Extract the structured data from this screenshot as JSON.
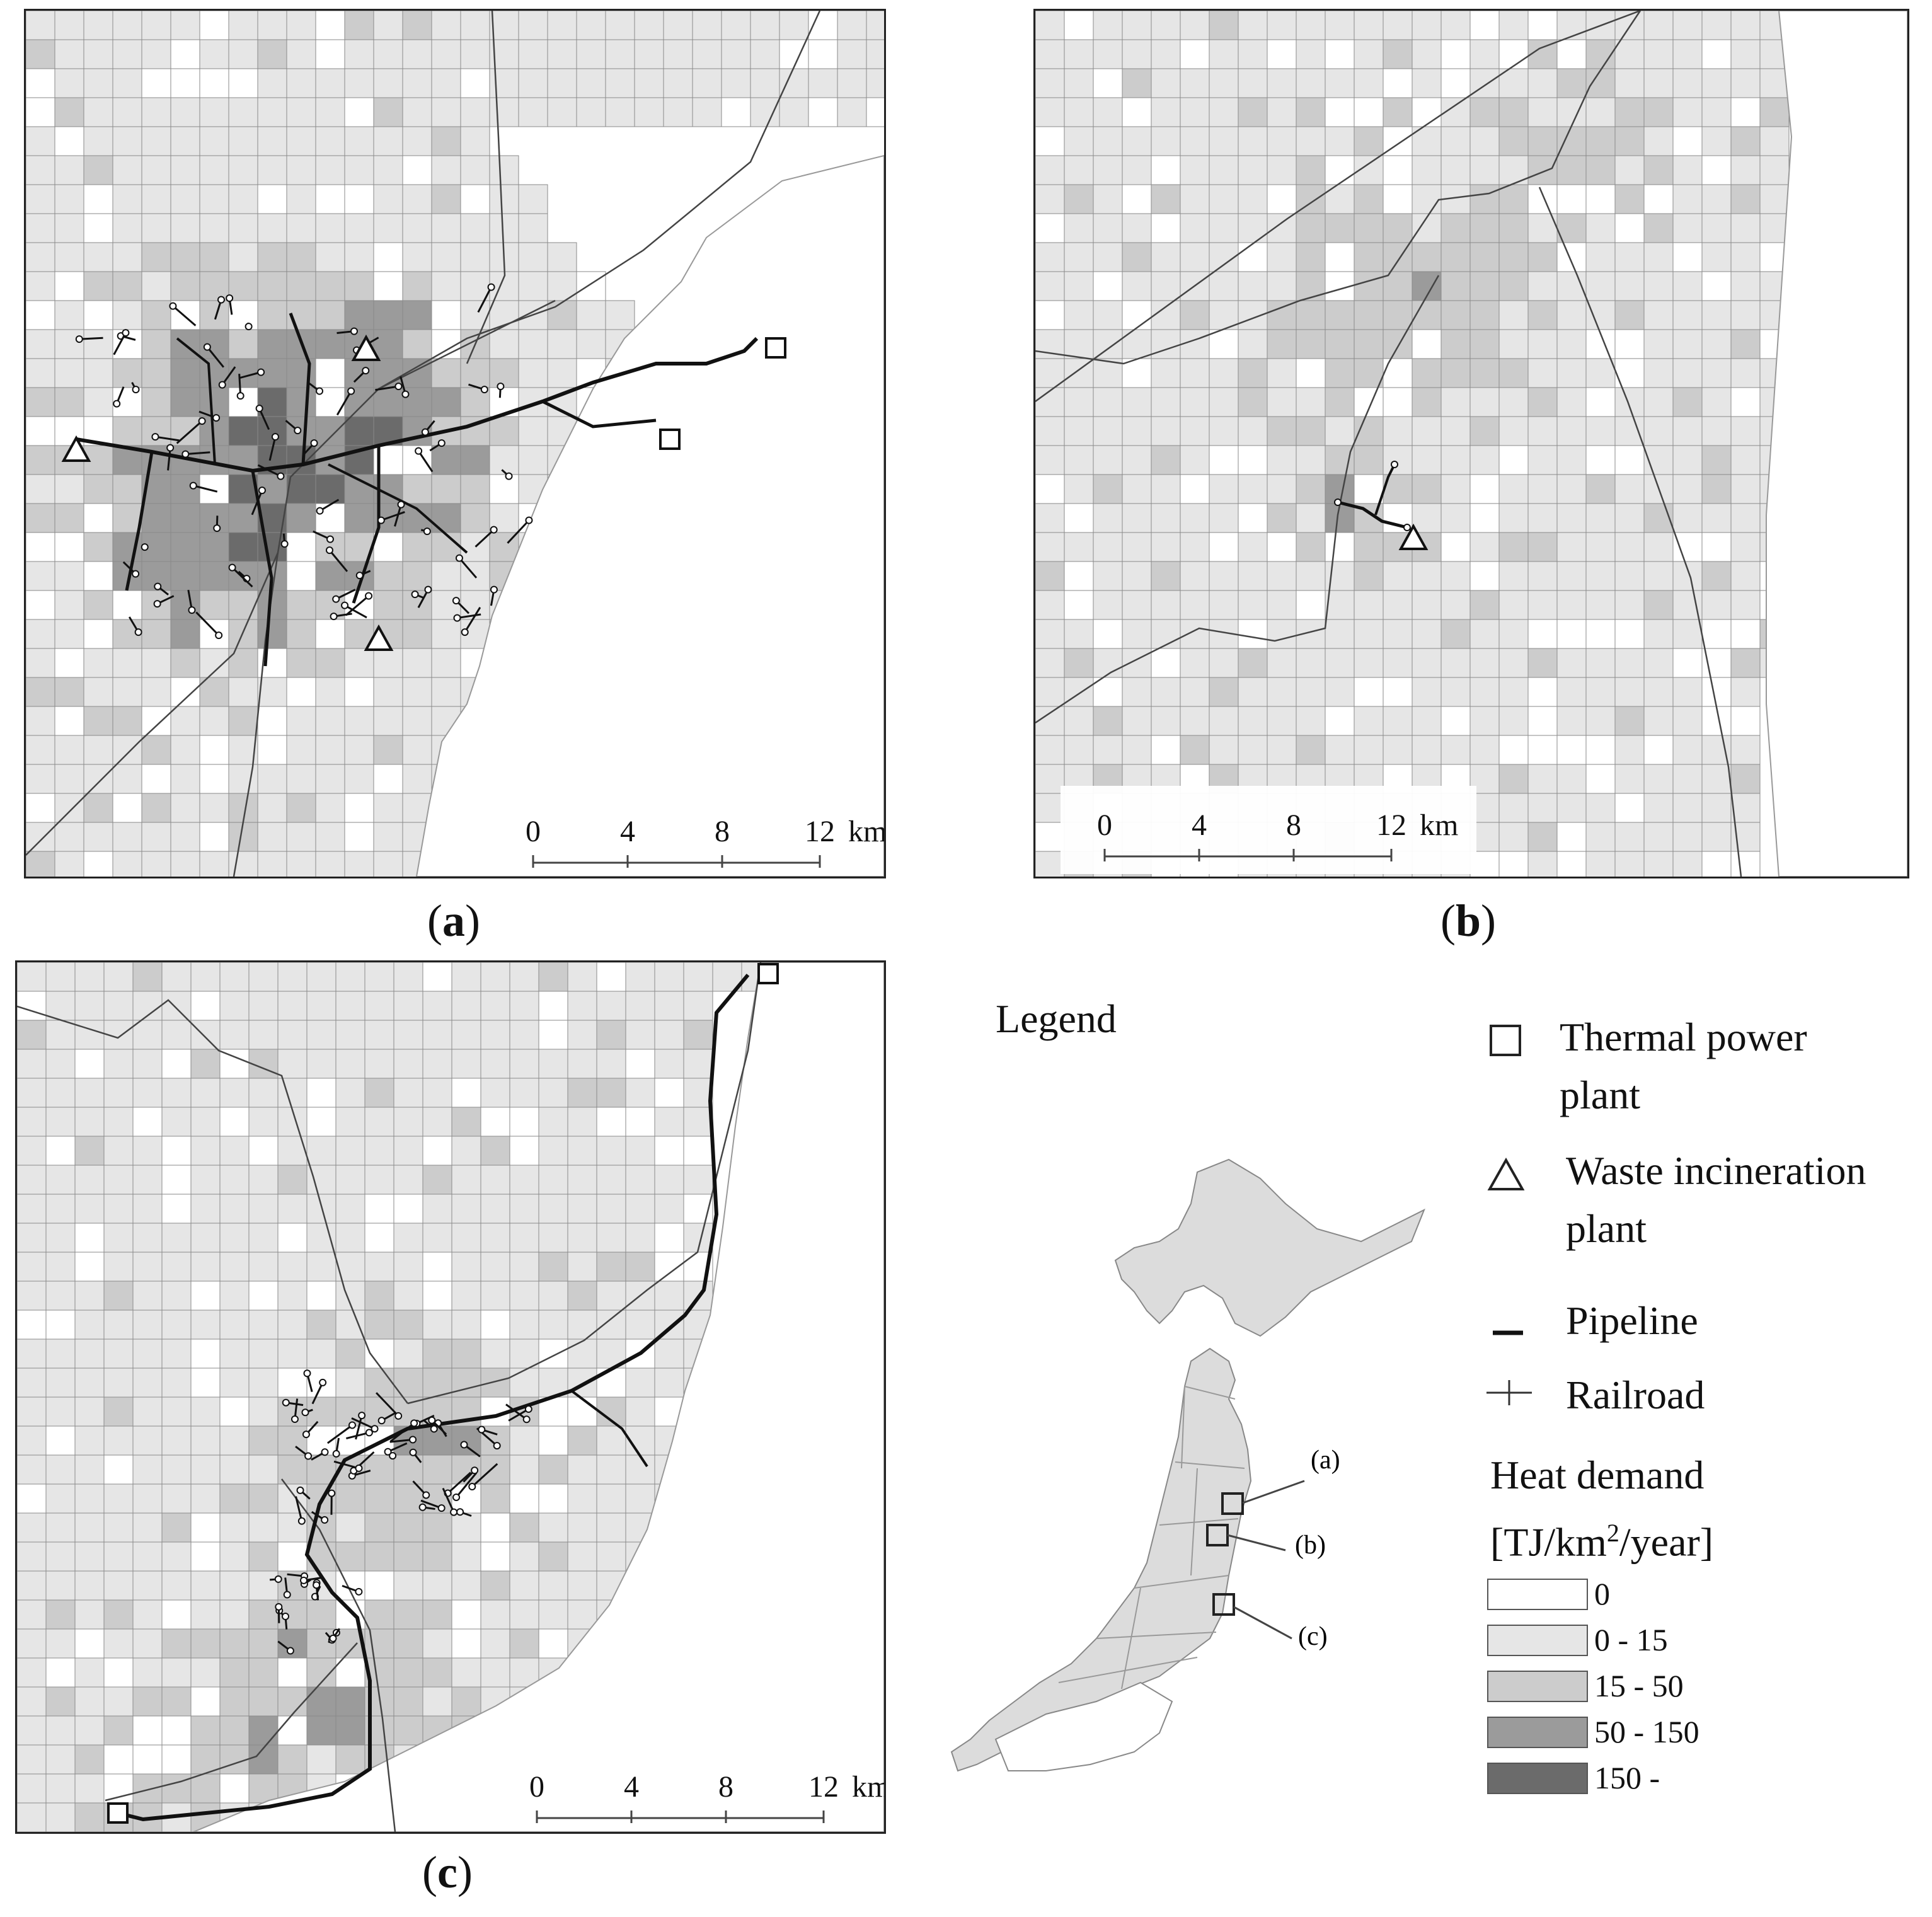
{
  "panels": [
    {
      "id": "a",
      "caption_letter": "a",
      "scale_ticks": [
        "0",
        "4",
        "8",
        "12"
      ],
      "scale_unit": "km"
    },
    {
      "id": "b",
      "caption_letter": "b",
      "scale_ticks": [
        "0",
        "4",
        "8",
        "12"
      ],
      "scale_unit": "km"
    },
    {
      "id": "c",
      "caption_letter": "c",
      "scale_ticks": [
        "0",
        "4",
        "8",
        "12"
      ],
      "scale_unit": "km"
    }
  ],
  "legend": {
    "title": "Legend",
    "items": [
      {
        "symbol": "square-icon",
        "label_line1": "Thermal power",
        "label_line2": "plant"
      },
      {
        "symbol": "triangle-icon",
        "label_line1": "Waste incineration",
        "label_line2": "plant"
      },
      {
        "symbol": "dash-icon",
        "label_line1": "Pipeline",
        "label_line2": ""
      },
      {
        "symbol": "plus-icon",
        "label_line1": "Railroad",
        "label_line2": ""
      }
    ],
    "heat_demand_title_line1": "Heat demand",
    "heat_demand_title_line2_pre": "[TJ/km",
    "heat_demand_title_sup": "2",
    "heat_demand_title_line2_post": "/year]",
    "classes": [
      {
        "label": "0",
        "color": "#ffffff"
      },
      {
        "label": "0 - 15",
        "color": "#e6e6e6"
      },
      {
        "label": "15 - 50",
        "color": "#cccccc"
      },
      {
        "label": "50 - 150",
        "color": "#9b9b9b"
      },
      {
        "label": "150 -",
        "color": "#6b6b6b"
      }
    ]
  },
  "inset_labels": [
    "(a)",
    "(b)",
    "(c)"
  ],
  "colors": {
    "frame": "#222222",
    "pipeline": "#111111",
    "railroad": "#444444",
    "grid": "#8a8a8a",
    "land": "#dcdcdc"
  }
}
